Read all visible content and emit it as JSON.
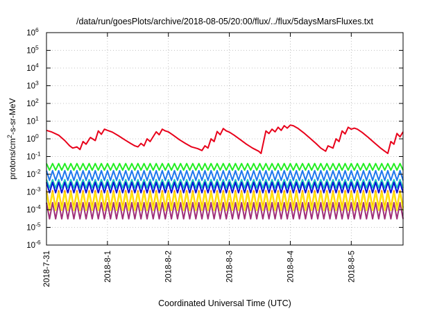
{
  "chart_data": {
    "type": "line",
    "title": "/data/run/goesPlots/archive/2018-08-05/20:00/flux/../flux/5daysMarsFluxes.txt",
    "xlabel": "Coordinated Universal Time (UTC)",
    "ylabel": {
      "pre": "protons/cm",
      "sup": "2",
      "post": "-s-sr-MeV"
    },
    "yscale": "log",
    "ylim": [
      1e-06,
      1000000.0
    ],
    "xlim": [
      0,
      5.85
    ],
    "grid": true,
    "legend": "none",
    "x_ticks": [
      {
        "x": 0,
        "label": "2018-7-31"
      },
      {
        "x": 1,
        "label": "2018-8-1"
      },
      {
        "x": 2,
        "label": "2018-8-2"
      },
      {
        "x": 3,
        "label": "2018-8-3"
      },
      {
        "x": 4,
        "label": "2018-8-4"
      },
      {
        "x": 5,
        "label": "2018-8-5"
      }
    ],
    "y_ticks": [
      {
        "exp": -6,
        "label": "10",
        "sup": "-6"
      },
      {
        "exp": -5,
        "label": "10",
        "sup": "-5"
      },
      {
        "exp": -4,
        "label": "10",
        "sup": "-4"
      },
      {
        "exp": -3,
        "label": "10",
        "sup": "-3"
      },
      {
        "exp": -2,
        "label": "10",
        "sup": "-2"
      },
      {
        "exp": -1,
        "label": "10",
        "sup": "-1"
      },
      {
        "exp": 0,
        "label": "10",
        "sup": "0"
      },
      {
        "exp": 1,
        "label": "10",
        "sup": "1"
      },
      {
        "exp": 2,
        "label": "10",
        "sup": "2"
      },
      {
        "exp": 3,
        "label": "10",
        "sup": "3"
      },
      {
        "exp": 4,
        "label": "10",
        "sup": "4"
      },
      {
        "exp": 5,
        "label": "10",
        "sup": "5"
      },
      {
        "exp": 6,
        "label": "10",
        "sup": "6"
      }
    ],
    "series": [
      {
        "color": "#e8001a",
        "x": [
          0.0,
          0.08,
          0.2,
          0.3,
          0.38,
          0.43,
          0.5,
          0.55,
          0.6,
          0.65,
          0.72,
          0.8,
          0.85,
          0.9,
          0.95,
          1.0,
          1.08,
          1.18,
          1.28,
          1.38,
          1.45,
          1.5,
          1.55,
          1.6,
          1.65,
          1.7,
          1.8,
          1.85,
          1.9,
          1.95,
          2.0,
          2.08,
          2.18,
          2.28,
          2.38,
          2.48,
          2.55,
          2.6,
          2.65,
          2.7,
          2.75,
          2.8,
          2.85,
          2.9,
          2.95,
          3.0,
          3.08,
          3.18,
          3.28,
          3.38,
          3.48,
          3.52,
          3.6,
          3.65,
          3.7,
          3.75,
          3.8,
          3.85,
          3.9,
          3.95,
          4.0,
          4.05,
          4.12,
          4.22,
          4.32,
          4.42,
          4.5,
          4.58,
          4.62,
          4.7,
          4.75,
          4.8,
          4.85,
          4.9,
          4.95,
          5.0,
          5.05,
          5.1,
          5.18,
          5.28,
          5.38,
          5.48,
          5.55,
          5.6,
          5.65,
          5.7,
          5.75,
          5.8,
          5.85
        ],
        "y": [
          3.0,
          2.5,
          1.6,
          0.8,
          0.4,
          0.3,
          0.35,
          0.25,
          0.7,
          0.5,
          1.2,
          0.8,
          2.8,
          1.8,
          3.5,
          3.0,
          2.4,
          1.5,
          0.9,
          0.55,
          0.4,
          0.35,
          0.55,
          0.4,
          1.0,
          0.7,
          2.5,
          1.7,
          3.5,
          2.8,
          2.5,
          1.6,
          0.9,
          0.55,
          0.35,
          0.28,
          0.22,
          0.4,
          0.3,
          1.0,
          0.7,
          2.6,
          1.7,
          3.8,
          2.8,
          2.4,
          1.6,
          0.9,
          0.5,
          0.3,
          0.2,
          0.15,
          2.8,
          2.0,
          3.5,
          2.5,
          4.5,
          3.0,
          5.5,
          4.0,
          6.0,
          5.5,
          4.0,
          2.2,
          1.1,
          0.55,
          0.3,
          0.2,
          0.4,
          0.3,
          1.0,
          0.7,
          2.8,
          1.9,
          4.5,
          3.5,
          4.0,
          3.5,
          2.3,
          1.2,
          0.6,
          0.3,
          0.2,
          0.15,
          0.7,
          0.5,
          2.0,
          1.3,
          2.5
        ]
      },
      {
        "color": "#22ee22",
        "period": 0.1,
        "peak": 0.04,
        "trough": 0.017,
        "x0": 0,
        "x1": 5.85
      },
      {
        "color": "#1e78ee",
        "period": 0.1,
        "peak": 0.016,
        "trough": 0.0045,
        "x0": 0,
        "x1": 5.85
      },
      {
        "color": "#22c9c0",
        "period": 0.1,
        "peak": 0.005,
        "trough": 0.0017,
        "x0": 0,
        "x1": 5.85
      },
      {
        "color": "#0a10d8",
        "period": 0.1,
        "peak": 0.0035,
        "trough": 0.0009,
        "x0": 0,
        "x1": 5.85
      },
      {
        "color": "#ff9d00",
        "period": 0.1,
        "peak": 0.0012,
        "trough": 0.00013,
        "x0": 0,
        "x1": 5.85
      },
      {
        "color": "#ffee10",
        "period": 0.1,
        "peak": 0.0009,
        "trough": 9e-05,
        "x0": 0,
        "x1": 5.85
      },
      {
        "color": "#a0307a",
        "period": 0.1,
        "peak": 0.00025,
        "trough": 3e-05,
        "x0": 0,
        "x1": 5.85
      }
    ]
  }
}
